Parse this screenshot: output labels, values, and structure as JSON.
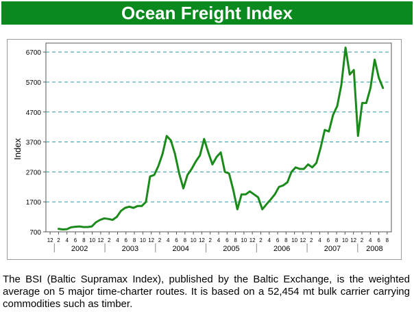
{
  "banner": {
    "title": "Ocean Freight Index"
  },
  "caption": {
    "text": "The BSI (Baltic Supramax Index), published by the Baltic Exchange, is the weighted average on 5 major time-charter routes. It is based on a 52,454 mt bulk carrier carrying commodities such as timber."
  },
  "colors": {
    "banner": "#0a8a1e",
    "line": "#1a8a1a",
    "grid": "#2a9aa8"
  },
  "chart_data": {
    "type": "line",
    "title": "",
    "xlabel": "",
    "ylabel": "Index",
    "ylim": [
      700,
      7000
    ],
    "yticks": [
      700,
      1700,
      2700,
      3700,
      4700,
      5700,
      6700
    ],
    "grid": "horizontal dashed",
    "month_ticks": [
      "12",
      "2",
      "4",
      "6",
      "8",
      "10",
      "12",
      "2",
      "4",
      "6",
      "8",
      "10",
      "12",
      "2",
      "4",
      "6",
      "8",
      "10",
      "12",
      "2",
      "4",
      "6",
      "8",
      "10",
      "12",
      "2",
      "4",
      "6",
      "8",
      "10",
      "12",
      "2",
      "4",
      "6",
      "8",
      "10",
      "12",
      "2",
      "4",
      "6",
      "8"
    ],
    "year_labels": [
      "2002",
      "2003",
      "2004",
      "2005",
      "2006",
      "2007",
      "2008"
    ],
    "series": [
      {
        "values": [
          800,
          780,
          790,
          850,
          870,
          880,
          860,
          860,
          880,
          1020,
          1100,
          1150,
          1130,
          1100,
          1200,
          1400,
          1500,
          1540,
          1500,
          1560,
          1560,
          1700,
          2550,
          2600,
          2900,
          3300,
          3900,
          3750,
          3300,
          2650,
          2150,
          2600,
          2800,
          3050,
          3250,
          3800,
          3350,
          2950,
          3200,
          3350,
          2700,
          2650,
          2100,
          1450,
          1950,
          1950,
          2050,
          1950,
          1850,
          1450,
          1620,
          1780,
          1950,
          2200,
          2250,
          2350,
          2700,
          2850,
          2800,
          2800,
          2950,
          2850,
          3000,
          3500,
          4100,
          4050,
          4600,
          4900,
          5600,
          6850,
          5950,
          6100,
          3900,
          5000,
          5000,
          5500,
          6450,
          5850,
          5500
        ]
      }
    ]
  }
}
